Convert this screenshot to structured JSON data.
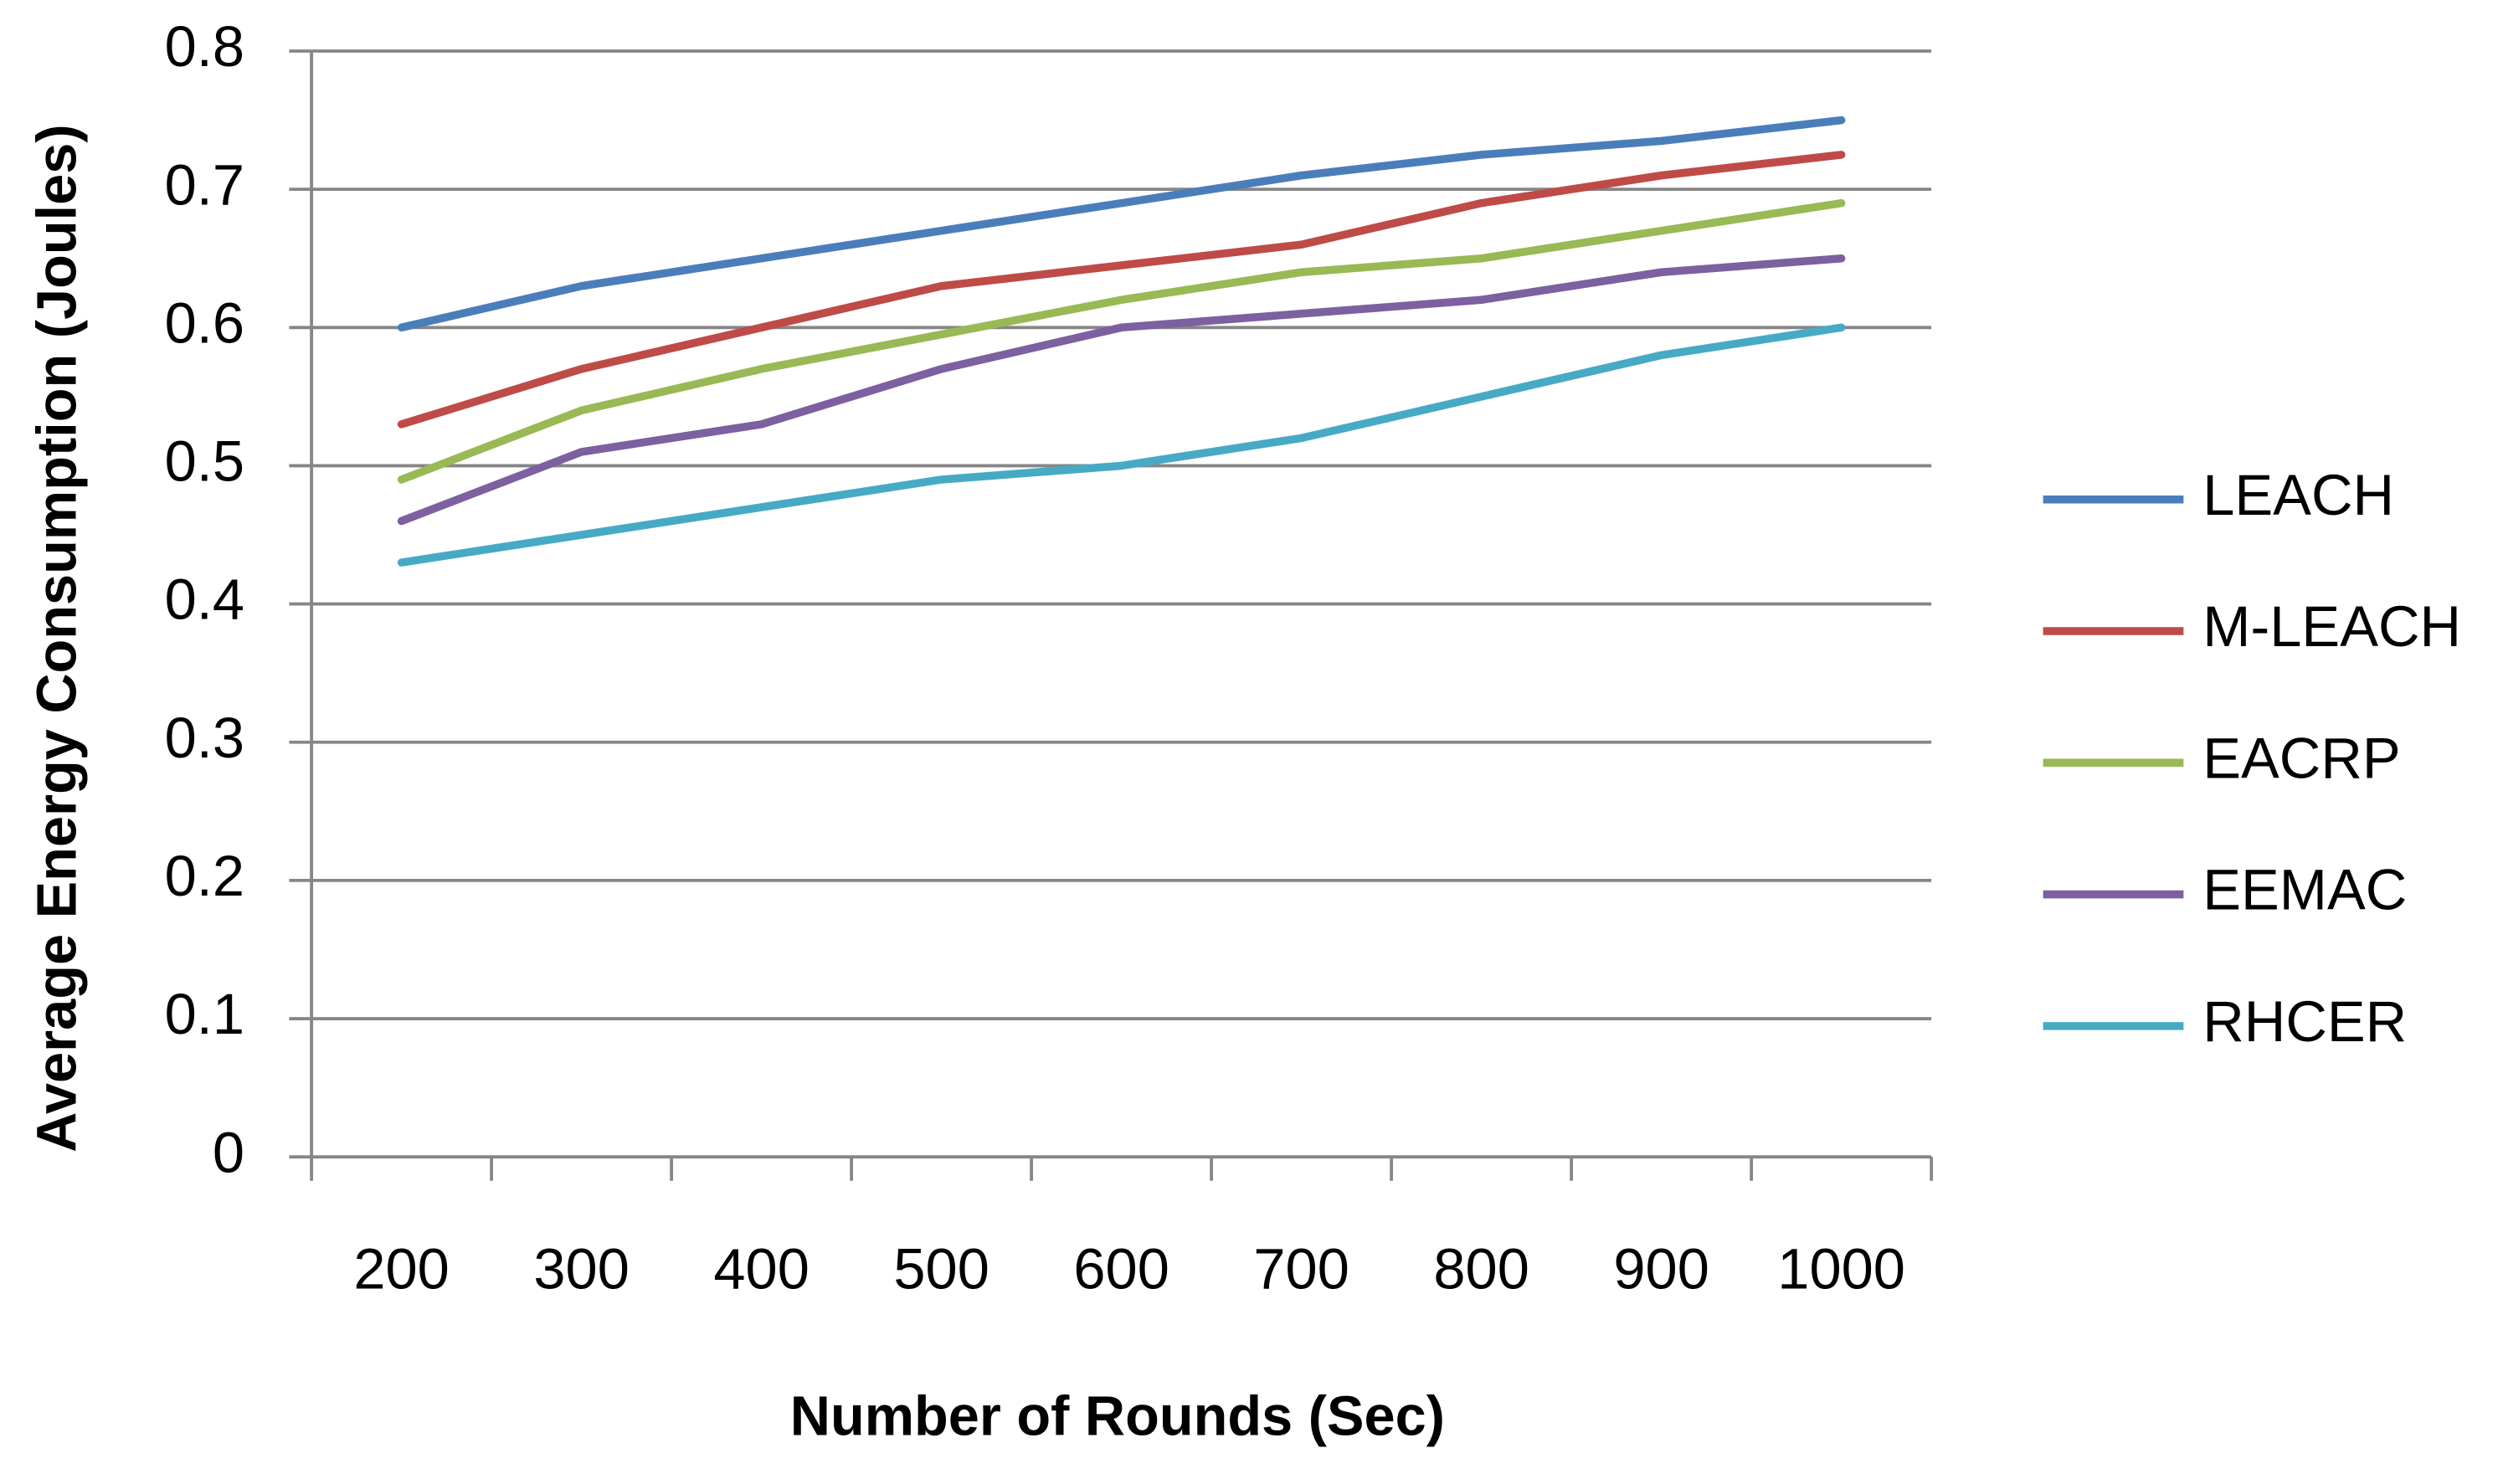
{
  "chart_data": {
    "type": "line",
    "x_label": "Number of Rounds (Sec)",
    "y_label": "Average Energy Consumption (Joules)",
    "categories": [
      "200",
      "300",
      "400",
      "500",
      "600",
      "700",
      "800",
      "900",
      "1000"
    ],
    "series": [
      {
        "name": "LEACH",
        "color": "#4a7ebb",
        "values": [
          0.6,
          0.63,
          0.65,
          0.67,
          0.69,
          0.71,
          0.725,
          0.735,
          0.75
        ]
      },
      {
        "name": "M-LEACH",
        "color": "#be4b48",
        "values": [
          0.53,
          0.57,
          0.6,
          0.63,
          0.645,
          0.66,
          0.69,
          0.71,
          0.725
        ]
      },
      {
        "name": "EACRP",
        "color": "#98b954",
        "values": [
          0.49,
          0.54,
          0.57,
          0.595,
          0.62,
          0.64,
          0.65,
          0.67,
          0.69
        ]
      },
      {
        "name": "EEMAC",
        "color": "#7d60a0",
        "values": [
          0.46,
          0.51,
          0.53,
          0.57,
          0.6,
          0.61,
          0.62,
          0.64,
          0.65
        ]
      },
      {
        "name": "RHCER",
        "color": "#46aac5",
        "values": [
          0.43,
          0.45,
          0.47,
          0.49,
          0.5,
          0.52,
          0.55,
          0.58,
          0.6
        ]
      }
    ],
    "ylim": [
      0,
      0.8
    ],
    "yticks": [
      0,
      0.1,
      0.2,
      0.3,
      0.4,
      0.5,
      0.6,
      0.7,
      0.8
    ],
    "grid": true,
    "legend": "right"
  }
}
